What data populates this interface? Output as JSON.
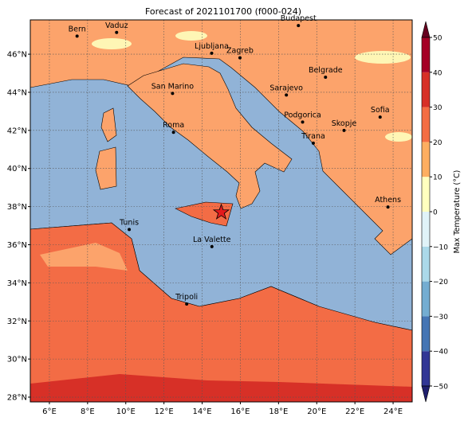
{
  "title": "Forecast of 2021101700 (f000-024)",
  "map": {
    "lon_lim": [
      5,
      25
    ],
    "lat_lim": [
      27.75,
      47.8
    ],
    "lon_ticks": [
      {
        "value": 6,
        "label": "6°E"
      },
      {
        "value": 8,
        "label": "8°E"
      },
      {
        "value": 10,
        "label": "10°E"
      },
      {
        "value": 12,
        "label": "12°E"
      },
      {
        "value": 14,
        "label": "14°E"
      },
      {
        "value": 16,
        "label": "16°E"
      },
      {
        "value": 18,
        "label": "18°E"
      },
      {
        "value": 20,
        "label": "20°E"
      },
      {
        "value": 22,
        "label": "22°E"
      },
      {
        "value": 24,
        "label": "24°E"
      }
    ],
    "lat_ticks": [
      {
        "value": 28,
        "label": "28°N"
      },
      {
        "value": 30,
        "label": "30°N"
      },
      {
        "value": 32,
        "label": "32°N"
      },
      {
        "value": 34,
        "label": "34°N"
      },
      {
        "value": 36,
        "label": "36°N"
      },
      {
        "value": 38,
        "label": "38°N"
      },
      {
        "value": 40,
        "label": "40°N"
      },
      {
        "value": 42,
        "label": "42°N"
      },
      {
        "value": 44,
        "label": "44°N"
      },
      {
        "value": 46,
        "label": "46°N"
      }
    ],
    "grid": true,
    "cities": [
      {
        "label": "Bern",
        "lon": 7.45,
        "lat": 46.95
      },
      {
        "label": "Vaduz",
        "lon": 9.52,
        "lat": 47.14
      },
      {
        "label": "Budapest",
        "lon": 19.04,
        "lat": 47.5
      },
      {
        "label": "Ljubljana",
        "lon": 14.5,
        "lat": 46.05
      },
      {
        "label": "Zagreb",
        "lon": 15.98,
        "lat": 45.81
      },
      {
        "label": "Belgrade",
        "lon": 20.46,
        "lat": 44.79
      },
      {
        "label": "San Marino",
        "lon": 12.45,
        "lat": 43.94
      },
      {
        "label": "Sarajevo",
        "lon": 18.41,
        "lat": 43.86
      },
      {
        "label": "Sofia",
        "lon": 23.32,
        "lat": 42.7
      },
      {
        "label": "Roma",
        "lon": 12.5,
        "lat": 41.9
      },
      {
        "label": "Podgorica",
        "lon": 19.26,
        "lat": 42.44
      },
      {
        "label": "Skopje",
        "lon": 21.43,
        "lat": 42.0
      },
      {
        "label": "Tirana",
        "lon": 19.82,
        "lat": 41.33
      },
      {
        "label": "Athens",
        "lon": 23.73,
        "lat": 37.98
      },
      {
        "label": "Tunis",
        "lon": 10.18,
        "lat": 36.8
      },
      {
        "label": "La Valette",
        "lon": 14.51,
        "lat": 35.9
      },
      {
        "label": "Tripoli",
        "lon": 13.19,
        "lat": 32.89
      }
    ],
    "marker": {
      "lon": 15.0,
      "lat": 37.7,
      "color": "#e31a1c"
    }
  },
  "colorbar": {
    "label": "Max Temperature (°C)",
    "lim": [
      -50,
      50
    ],
    "ticks": [
      {
        "value": -50,
        "label": "−50"
      },
      {
        "value": -40,
        "label": "−40"
      },
      {
        "value": -30,
        "label": "−30"
      },
      {
        "value": -20,
        "label": "−20"
      },
      {
        "value": -10,
        "label": "−10"
      },
      0,
      10,
      20,
      30,
      40,
      50
    ],
    "colors": [
      "#313695",
      "#4575b4",
      "#74add1",
      "#abd9e9",
      "#e0f3f8",
      "#ffffbf",
      "#fdae61",
      "#f46d43",
      "#d73027",
      "#a50026"
    ],
    "under_color": "#1f1f6e",
    "over_color": "#67001f"
  }
}
